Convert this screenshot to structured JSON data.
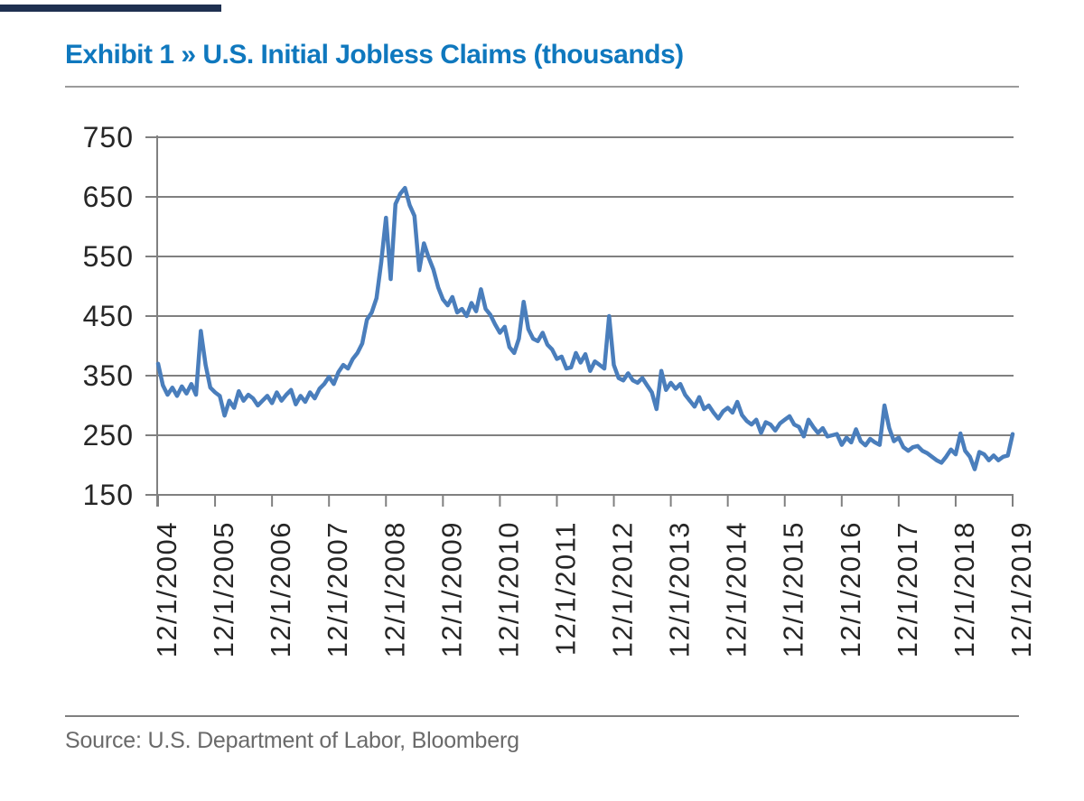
{
  "header": {
    "exhibit_title": "Exhibit 1 » U.S. Initial Jobless Claims (thousands)"
  },
  "footer": {
    "source": "Source: U.S. Department of Labor, Bloomberg"
  },
  "colors": {
    "title_blue": "#0f78be",
    "line_blue": "#4a7ebc",
    "grid_gray": "#808080",
    "rule_gray": "#9b9b9b",
    "label_dark": "#262626",
    "source_gray": "#6a6a6a",
    "accent_bar_navy": "#1f3050"
  },
  "chart_data": {
    "type": "line",
    "title": "Exhibit 1 » U.S. Initial Jobless Claims (thousands)",
    "xlabel": "",
    "ylabel": "",
    "ylim": [
      150,
      750
    ],
    "yticks": [
      750,
      650,
      550,
      450,
      350,
      250,
      150
    ],
    "xtick_labels": [
      "12/1/2004",
      "12/1/2005",
      "12/1/2006",
      "12/1/2007",
      "12/1/2008",
      "12/1/2009",
      "12/1/2010",
      "12/1/2011",
      "12/1/2012",
      "12/1/2013",
      "12/1/2014",
      "12/1/2015",
      "12/1/2016",
      "12/1/2017",
      "12/1/2018",
      "12/1/2019"
    ],
    "grid": "horizontal",
    "legend_position": "none",
    "x_label_rotation": -90,
    "series": [
      {
        "name": "U.S. Initial Jobless Claims (thousands)",
        "start": "2004-12",
        "interval": "monthly",
        "values": [
          370,
          334,
          318,
          330,
          316,
          332,
          320,
          336,
          318,
          425,
          368,
          330,
          322,
          316,
          283,
          308,
          296,
          324,
          308,
          318,
          312,
          300,
          308,
          316,
          304,
          322,
          308,
          318,
          326,
          302,
          316,
          306,
          322,
          312,
          328,
          336,
          348,
          336,
          356,
          368,
          362,
          378,
          388,
          404,
          444,
          456,
          480,
          540,
          615,
          512,
          638,
          655,
          665,
          636,
          618,
          527,
          572,
          548,
          528,
          498,
          478,
          468,
          482,
          456,
          462,
          450,
          472,
          458,
          495,
          462,
          452,
          436,
          422,
          432,
          398,
          388,
          412,
          474,
          428,
          412,
          408,
          422,
          402,
          394,
          378,
          382,
          362,
          364,
          388,
          372,
          386,
          358,
          374,
          368,
          362,
          450,
          368,
          346,
          342,
          354,
          342,
          338,
          346,
          334,
          322,
          294,
          358,
          326,
          338,
          328,
          336,
          318,
          308,
          298,
          314,
          294,
          300,
          288,
          278,
          290,
          296,
          288,
          306,
          284,
          274,
          268,
          276,
          254,
          272,
          268,
          258,
          270,
          276,
          282,
          268,
          264,
          248,
          276,
          264,
          254,
          262,
          248,
          250,
          252,
          234,
          246,
          238,
          260,
          240,
          233,
          244,
          238,
          234,
          300,
          262,
          240,
          246,
          230,
          224,
          230,
          232,
          224,
          220,
          214,
          208,
          204,
          214,
          226,
          218,
          253,
          224,
          214,
          193,
          222,
          218,
          208,
          216,
          208,
          214,
          216,
          252
        ]
      }
    ]
  }
}
